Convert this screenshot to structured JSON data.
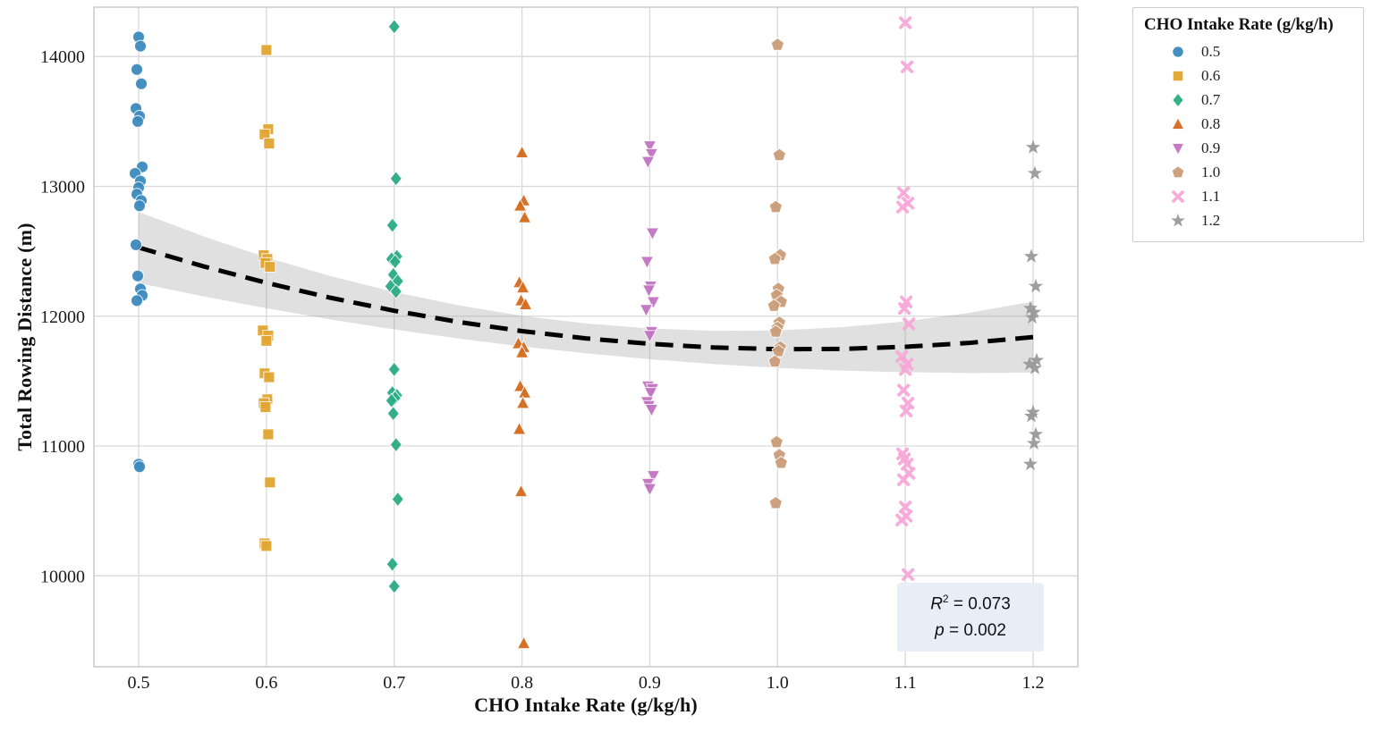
{
  "chart_data": {
    "type": "scatter",
    "title": "",
    "xlabel": "CHO Intake Rate (g/kg/h)",
    "ylabel": "Total Rowing Distance (m)",
    "legend_title": "CHO Intake Rate (g/kg/h)",
    "legend_position": "right-outside",
    "grid": true,
    "xlim": [
      0.465,
      1.235
    ],
    "ylim": [
      9300,
      14380
    ],
    "xticks": [
      0.5,
      0.6,
      0.7,
      0.8,
      0.9,
      1.0,
      1.1,
      1.2
    ],
    "xtick_labels": [
      "0.5",
      "0.6",
      "0.7",
      "0.8",
      "0.9",
      "1.0",
      "1.1",
      "1.2"
    ],
    "yticks": [
      10000,
      11000,
      12000,
      13000,
      14000
    ],
    "ytick_labels": [
      "10000",
      "11000",
      "12000",
      "13000",
      "14000"
    ],
    "grid_color": "#d9d9d9",
    "border_color": "#c8c8c8",
    "series": [
      {
        "name": "0.5",
        "marker": "circle",
        "color": "#3c8abe",
        "x": 0.5,
        "values": [
          14150,
          14080,
          13900,
          13790,
          13600,
          13540,
          13500,
          13150,
          13100,
          13040,
          12990,
          12940,
          12890,
          12850,
          12550,
          12310,
          12210,
          12160,
          12120,
          10860,
          10840
        ]
      },
      {
        "name": "0.6",
        "marker": "square",
        "color": "#e0a430",
        "x": 0.6,
        "values": [
          14050,
          13440,
          13400,
          13330,
          12470,
          12440,
          12410,
          12380,
          11890,
          11850,
          11810,
          11560,
          11530,
          11360,
          11330,
          11300,
          11090,
          10720,
          10250,
          10230
        ]
      },
      {
        "name": "0.7",
        "marker": "diamond",
        "color": "#2aab82",
        "x": 0.7,
        "values": [
          14230,
          13060,
          12700,
          12460,
          12440,
          12420,
          12320,
          12270,
          12230,
          12190,
          11590,
          11410,
          11390,
          11370,
          11350,
          11250,
          11010,
          10590,
          10090,
          9920
        ]
      },
      {
        "name": "0.8",
        "marker": "triangle-up",
        "color": "#d4691e",
        "x": 0.8,
        "values": [
          13260,
          12890,
          12850,
          12760,
          12260,
          12220,
          12120,
          12090,
          11790,
          11760,
          11720,
          11460,
          11410,
          11330,
          11130,
          10650,
          9480
        ]
      },
      {
        "name": "0.9",
        "marker": "triangle-down",
        "color": "#c173c1",
        "x": 0.9,
        "values": [
          13310,
          13250,
          13190,
          12640,
          12420,
          12230,
          12200,
          12110,
          12050,
          11880,
          11850,
          11460,
          11440,
          11410,
          11340,
          11310,
          11280,
          10770,
          10710,
          10670
        ]
      },
      {
        "name": "1.0",
        "marker": "pentagon",
        "color": "#c99c78",
        "x": 1.0,
        "values": [
          14090,
          13240,
          12840,
          12470,
          12440,
          12210,
          12160,
          12110,
          12080,
          11950,
          11910,
          11880,
          11760,
          11730,
          11650,
          11030,
          10930,
          10870,
          10560
        ]
      },
      {
        "name": "1.1",
        "marker": "x",
        "color": "#f8a8d8",
        "x": 1.1,
        "values": [
          14260,
          13920,
          12950,
          12870,
          12840,
          12110,
          12060,
          11940,
          11690,
          11630,
          11590,
          11430,
          11330,
          11270,
          10940,
          10900,
          10860,
          10790,
          10740,
          10530,
          10460,
          10430,
          10010
        ]
      },
      {
        "name": "1.2",
        "marker": "star",
        "color": "#999999",
        "x": 1.2,
        "values": [
          13300,
          13100,
          12460,
          12230,
          12060,
          12030,
          11990,
          11660,
          11630,
          11600,
          11260,
          11230,
          11090,
          11020,
          10860
        ]
      }
    ],
    "trend": {
      "style": "dashed",
      "color": "#000000",
      "band_color": "#999999",
      "band_opacity": 0.3,
      "x": [
        0.5,
        0.55,
        0.6,
        0.65,
        0.7,
        0.75,
        0.8,
        0.85,
        0.9,
        0.95,
        1.0,
        1.05,
        1.1,
        1.15,
        1.2
      ],
      "y": [
        12529,
        12386,
        12257,
        12142,
        12042,
        11956,
        11885,
        11829,
        11787,
        11759,
        11746,
        11748,
        11764,
        11794,
        11839
      ],
      "band_halfwidth": [
        274,
        232,
        196,
        167,
        144,
        128,
        118,
        115,
        118,
        128,
        144,
        167,
        196,
        232,
        274
      ]
    },
    "annotation": {
      "r2_label": "R",
      "r2_sup": "2",
      "r2_value": " = 0.073",
      "p_label": "p",
      "p_value": " = 0.002"
    }
  }
}
